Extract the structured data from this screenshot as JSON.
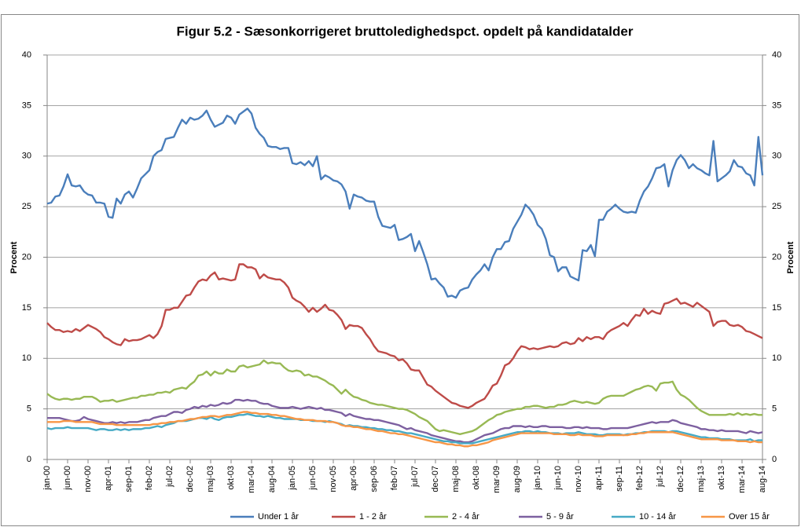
{
  "chart_data": {
    "type": "line",
    "title": "Figur 5.2 - Sæsonkorrigeret bruttoledighedspct. opdelt på kandidatalder",
    "y_label": "Procent",
    "y2_label": "Procent",
    "ylim": [
      0,
      40
    ],
    "yticks": [
      0,
      5,
      10,
      15,
      20,
      25,
      30,
      35,
      40
    ],
    "y2lim": [
      0,
      40
    ],
    "y2ticks": [
      0,
      5,
      10,
      15,
      20,
      25,
      30,
      35,
      40
    ],
    "grid": true,
    "legend": "bottom",
    "categories": [
      "jan-00",
      null,
      null,
      null,
      null,
      "jun-00",
      null,
      null,
      null,
      null,
      "nov-00",
      null,
      null,
      null,
      null,
      "apr-01",
      null,
      null,
      null,
      null,
      "sep-01",
      null,
      null,
      null,
      null,
      "feb-02",
      null,
      null,
      null,
      null,
      "jul-02",
      null,
      null,
      null,
      null,
      "dec-02",
      null,
      null,
      null,
      null,
      "maj-03",
      null,
      null,
      null,
      null,
      "okt-03",
      null,
      null,
      null,
      null,
      "mar-04",
      null,
      null,
      null,
      null,
      "aug-04",
      null,
      null,
      null,
      null,
      "jan-05",
      null,
      null,
      null,
      null,
      "jun-05",
      null,
      null,
      null,
      null,
      "nov-05",
      null,
      null,
      null,
      null,
      "apr-06",
      null,
      null,
      null,
      null,
      "sep-06",
      null,
      null,
      null,
      null,
      "feb-07",
      null,
      null,
      null,
      null,
      "jul-07",
      null,
      null,
      null,
      null,
      "dec-07",
      null,
      null,
      null,
      null,
      "maj-08",
      null,
      null,
      null,
      null,
      "okt-08",
      null,
      null,
      null,
      null,
      "mar-09",
      null,
      null,
      null,
      null,
      "aug-09",
      null,
      null,
      null,
      null,
      "jan-10",
      null,
      null,
      null,
      null,
      "jun-10",
      null,
      null,
      null,
      null,
      "nov-10",
      null,
      null,
      null,
      null,
      "apr-11",
      null,
      null,
      null,
      null,
      "sep-11",
      null,
      null,
      null,
      null,
      "feb-12",
      null,
      null,
      null,
      null,
      "jul-12",
      null,
      null,
      null,
      null,
      "dec-12",
      null,
      null,
      null,
      null,
      "maj-13",
      null,
      null,
      null,
      null,
      "okt-13",
      null,
      null,
      null,
      null,
      "mar-14",
      null,
      null,
      null,
      null,
      "aug-14"
    ],
    "series": [
      {
        "name": "Under 1 år",
        "color": "#4a7ebb",
        "values": [
          25.3,
          25.4,
          26.0,
          26.1,
          27.0,
          28.2,
          27.1,
          27.0,
          27.1,
          26.5,
          26.2,
          26.1,
          25.4,
          25.4,
          25.3,
          24.0,
          23.9,
          25.8,
          25.3,
          26.2,
          26.5,
          25.9,
          26.8,
          27.8,
          28.2,
          28.6,
          30.0,
          30.4,
          30.6,
          31.7,
          31.8,
          31.9,
          32.8,
          33.6,
          33.2,
          33.8,
          33.6,
          33.7,
          34.0,
          34.5,
          33.6,
          32.9,
          33.1,
          33.3,
          34.0,
          33.8,
          33.2,
          34.1,
          34.4,
          34.7,
          34.2,
          32.8,
          32.2,
          31.8,
          31.0,
          30.9,
          30.9,
          30.7,
          30.8,
          30.8,
          29.3,
          29.2,
          29.4,
          29.1,
          29.5,
          29.0,
          30.0,
          27.7,
          28.1,
          27.9,
          27.6,
          27.5,
          27.2,
          26.5,
          24.8,
          26.2,
          26.0,
          25.9,
          25.6,
          25.5,
          25.5,
          24.0,
          23.1,
          23.0,
          22.9,
          23.2,
          21.7,
          21.8,
          22.0,
          22.3,
          20.6,
          21.6,
          20.5,
          19.3,
          17.8,
          17.9,
          17.4,
          17.0,
          16.1,
          16.2,
          16.0,
          16.7,
          16.9,
          17.0,
          17.8,
          18.3,
          18.7,
          19.3,
          18.7,
          20.0,
          20.8,
          20.8,
          21.5,
          21.6,
          22.8,
          23.5,
          24.2,
          25.2,
          24.8,
          24.2,
          23.2,
          22.8,
          21.8,
          20.2,
          20.0,
          18.6,
          19.0,
          19.0,
          18.1,
          17.9,
          17.7,
          20.7,
          20.6,
          21.2,
          20.1,
          23.7,
          23.7,
          24.5,
          24.8,
          25.2,
          24.8,
          24.5,
          24.4,
          24.5,
          24.4,
          25.6,
          26.5,
          27.0,
          27.8,
          28.8,
          28.9,
          29.2,
          27.0,
          28.6,
          29.6,
          30.1,
          29.6,
          28.8,
          29.2,
          28.8,
          28.6,
          28.3,
          28.1,
          31.5,
          27.5,
          27.8,
          28.1,
          28.5,
          29.6,
          29.0,
          28.9,
          28.3,
          28.1,
          27.1,
          31.9,
          28.1
        ]
      },
      {
        "name": "1 - 2 år",
        "color": "#be4b48",
        "values": [
          13.5,
          13.1,
          12.8,
          12.8,
          12.6,
          12.7,
          12.6,
          12.9,
          12.7,
          13.0,
          13.3,
          13.1,
          12.9,
          12.6,
          12.1,
          11.9,
          11.6,
          11.4,
          11.3,
          11.9,
          11.7,
          11.8,
          11.8,
          11.9,
          12.1,
          12.3,
          12.0,
          12.4,
          13.2,
          14.8,
          14.8,
          15.0,
          15.0,
          15.6,
          16.2,
          16.3,
          17.0,
          17.6,
          17.8,
          17.7,
          18.2,
          18.5,
          17.8,
          17.9,
          17.8,
          17.7,
          17.8,
          19.3,
          19.3,
          19.0,
          19.0,
          18.8,
          17.9,
          18.3,
          18.0,
          17.9,
          17.8,
          17.8,
          17.5,
          17.0,
          16.0,
          15.7,
          15.5,
          15.1,
          14.6,
          15.0,
          14.6,
          14.9,
          15.3,
          14.8,
          14.7,
          14.3,
          13.8,
          12.9,
          13.3,
          13.2,
          13.2,
          13.0,
          12.4,
          11.9,
          11.2,
          10.7,
          10.6,
          10.5,
          10.3,
          10.2,
          9.8,
          9.9,
          9.5,
          8.9,
          8.8,
          8.8,
          8.1,
          7.4,
          7.2,
          6.8,
          6.5,
          6.2,
          5.9,
          5.6,
          5.5,
          5.3,
          5.2,
          5.1,
          5.3,
          5.6,
          5.8,
          6.0,
          6.6,
          7.3,
          7.5,
          8.3,
          9.3,
          9.5,
          10.0,
          10.7,
          11.2,
          11.1,
          10.9,
          11.0,
          10.9,
          11.0,
          11.1,
          11.2,
          11.1,
          11.2,
          11.5,
          11.6,
          11.4,
          11.5,
          12.0,
          11.7,
          12.1,
          11.9,
          12.1,
          12.1,
          11.9,
          12.5,
          12.8,
          13.0,
          13.2,
          13.5,
          13.2,
          13.8,
          14.3,
          14.2,
          14.9,
          14.4,
          14.7,
          14.5,
          14.4,
          15.4,
          15.5,
          15.7,
          15.9,
          15.4,
          15.5,
          15.3,
          15.1,
          15.5,
          15.2,
          14.9,
          14.6,
          13.2,
          13.6,
          13.7,
          13.7,
          13.3,
          13.2,
          13.3,
          13.1,
          12.7,
          12.6,
          12.4,
          12.2,
          12.0
        ]
      },
      {
        "name": "2 - 4 år",
        "color": "#98b954",
        "values": [
          6.5,
          6.2,
          6.0,
          5.9,
          6.0,
          6.0,
          5.9,
          6.0,
          6.0,
          6.2,
          6.2,
          6.2,
          6.0,
          5.7,
          5.8,
          5.8,
          5.9,
          5.7,
          5.8,
          5.9,
          6.0,
          6.1,
          6.1,
          6.3,
          6.3,
          6.4,
          6.4,
          6.6,
          6.6,
          6.7,
          6.6,
          6.9,
          7.0,
          7.1,
          7.0,
          7.4,
          7.7,
          8.3,
          8.4,
          8.7,
          8.3,
          8.7,
          8.5,
          8.5,
          8.9,
          8.7,
          8.7,
          9.2,
          9.3,
          9.1,
          9.2,
          9.3,
          9.4,
          9.8,
          9.5,
          9.6,
          9.5,
          9.5,
          9.1,
          8.8,
          8.7,
          8.8,
          8.7,
          8.3,
          8.4,
          8.2,
          8.2,
          8.0,
          7.8,
          7.5,
          7.3,
          6.9,
          6.5,
          6.9,
          6.5,
          6.2,
          6.1,
          5.9,
          5.8,
          5.6,
          5.5,
          5.4,
          5.4,
          5.3,
          5.2,
          5.1,
          5.0,
          5.0,
          4.9,
          4.7,
          4.5,
          4.2,
          4.0,
          3.8,
          3.4,
          3.0,
          2.8,
          2.9,
          2.8,
          2.7,
          2.6,
          2.5,
          2.6,
          2.7,
          2.8,
          3.0,
          3.3,
          3.6,
          3.9,
          4.1,
          4.4,
          4.5,
          4.7,
          4.8,
          4.9,
          5.0,
          5.0,
          5.2,
          5.2,
          5.3,
          5.3,
          5.2,
          5.1,
          5.2,
          5.2,
          5.4,
          5.4,
          5.5,
          5.7,
          5.8,
          5.7,
          5.6,
          5.7,
          5.6,
          5.5,
          5.6,
          6.0,
          6.2,
          6.3,
          6.3,
          6.3,
          6.3,
          6.5,
          6.7,
          6.9,
          7.0,
          7.2,
          7.3,
          7.2,
          6.8,
          7.5,
          7.6,
          7.6,
          7.7,
          6.9,
          6.4,
          6.2,
          5.9,
          5.5,
          5.1,
          4.8,
          4.6,
          4.4,
          4.4,
          4.4,
          4.4,
          4.4,
          4.5,
          4.4,
          4.6,
          4.4,
          4.5,
          4.4,
          4.5,
          4.4,
          4.4
        ]
      },
      {
        "name": "5 - 9 år",
        "color": "#7d60a0",
        "values": [
          4.1,
          4.1,
          4.1,
          4.1,
          4.0,
          3.9,
          3.8,
          3.8,
          3.9,
          4.2,
          4.0,
          3.9,
          3.8,
          3.7,
          3.6,
          3.6,
          3.7,
          3.6,
          3.7,
          3.6,
          3.7,
          3.7,
          3.7,
          3.8,
          3.9,
          3.9,
          4.1,
          4.2,
          4.3,
          4.3,
          4.5,
          4.7,
          4.7,
          4.6,
          4.9,
          5.0,
          5.2,
          5.1,
          5.3,
          5.2,
          5.4,
          5.3,
          5.4,
          5.6,
          5.5,
          5.6,
          5.9,
          5.9,
          5.8,
          5.9,
          5.8,
          5.8,
          5.6,
          5.5,
          5.5,
          5.3,
          5.2,
          5.1,
          5.1,
          5.1,
          5.2,
          5.1,
          5.0,
          5.1,
          5.2,
          5.1,
          5.0,
          5.1,
          4.9,
          4.9,
          4.8,
          4.7,
          4.6,
          4.3,
          4.5,
          4.3,
          4.2,
          4.1,
          4.0,
          4.0,
          3.9,
          3.9,
          3.8,
          3.7,
          3.6,
          3.5,
          3.4,
          3.2,
          3.0,
          3.1,
          2.9,
          2.8,
          2.7,
          2.6,
          2.4,
          2.3,
          2.2,
          2.1,
          2.0,
          1.9,
          1.8,
          1.8,
          1.7,
          1.7,
          1.8,
          2.0,
          2.2,
          2.4,
          2.5,
          2.6,
          2.8,
          3.0,
          3.1,
          3.1,
          3.3,
          3.3,
          3.3,
          3.2,
          3.3,
          3.2,
          3.2,
          3.3,
          3.3,
          3.2,
          3.2,
          3.2,
          3.2,
          3.1,
          3.1,
          3.2,
          3.2,
          3.1,
          3.2,
          3.1,
          3.1,
          3.1,
          3.0,
          3.0,
          3.1,
          3.1,
          3.1,
          3.1,
          3.1,
          3.2,
          3.3,
          3.4,
          3.5,
          3.6,
          3.7,
          3.6,
          3.7,
          3.7,
          3.7,
          3.9,
          3.8,
          3.6,
          3.5,
          3.4,
          3.3,
          3.2,
          3.0,
          3.0,
          2.9,
          2.9,
          2.8,
          2.9,
          2.8,
          2.8,
          2.8,
          2.8,
          2.7,
          2.6,
          2.8,
          2.7,
          2.6,
          2.7
        ]
      },
      {
        "name": "10 - 14 år",
        "color": "#46aac5",
        "values": [
          3.1,
          3.0,
          3.1,
          3.1,
          3.1,
          3.2,
          3.1,
          3.1,
          3.1,
          3.1,
          3.1,
          3.0,
          2.9,
          3.0,
          3.0,
          2.9,
          2.9,
          3.0,
          2.9,
          3.0,
          2.9,
          3.0,
          3.0,
          3.0,
          3.1,
          3.1,
          3.2,
          3.3,
          3.2,
          3.4,
          3.5,
          3.6,
          3.8,
          3.8,
          3.8,
          3.9,
          4.0,
          4.1,
          4.1,
          4.0,
          4.2,
          4.0,
          3.9,
          4.1,
          4.2,
          4.2,
          4.3,
          4.4,
          4.4,
          4.5,
          4.4,
          4.3,
          4.3,
          4.2,
          4.3,
          4.2,
          4.1,
          4.1,
          4.0,
          4.0,
          4.0,
          4.0,
          3.9,
          3.9,
          3.9,
          3.8,
          3.8,
          3.8,
          3.7,
          3.8,
          3.7,
          3.6,
          3.5,
          3.3,
          3.4,
          3.3,
          3.3,
          3.2,
          3.2,
          3.1,
          3.1,
          3.0,
          3.0,
          2.9,
          2.9,
          2.8,
          2.8,
          2.7,
          2.6,
          2.6,
          2.5,
          2.4,
          2.3,
          2.2,
          2.1,
          2.0,
          1.9,
          1.8,
          1.8,
          1.7,
          1.7,
          1.6,
          1.6,
          1.6,
          1.6,
          1.7,
          1.8,
          1.9,
          2.0,
          2.1,
          2.2,
          2.3,
          2.4,
          2.5,
          2.6,
          2.7,
          2.7,
          2.8,
          2.8,
          2.7,
          2.8,
          2.7,
          2.7,
          2.6,
          2.6,
          2.6,
          2.5,
          2.6,
          2.6,
          2.6,
          2.7,
          2.6,
          2.5,
          2.5,
          2.5,
          2.4,
          2.4,
          2.5,
          2.5,
          2.5,
          2.5,
          2.4,
          2.5,
          2.5,
          2.6,
          2.6,
          2.7,
          2.7,
          2.8,
          2.8,
          2.8,
          2.8,
          2.7,
          2.8,
          2.8,
          2.7,
          2.6,
          2.5,
          2.4,
          2.3,
          2.2,
          2.2,
          2.1,
          2.1,
          2.1,
          2.0,
          2.0,
          2.0,
          1.9,
          1.9,
          1.9,
          1.9,
          2.0,
          1.8,
          1.9,
          1.9
        ]
      },
      {
        "name": "Over 15 år",
        "color": "#f79646",
        "values": [
          3.7,
          3.7,
          3.7,
          3.7,
          3.8,
          3.8,
          3.8,
          3.7,
          3.7,
          3.7,
          3.7,
          3.7,
          3.6,
          3.5,
          3.5,
          3.5,
          3.5,
          3.4,
          3.4,
          3.4,
          3.4,
          3.4,
          3.4,
          3.4,
          3.4,
          3.4,
          3.5,
          3.5,
          3.6,
          3.6,
          3.7,
          3.7,
          3.8,
          3.8,
          3.9,
          4.0,
          4.0,
          4.1,
          4.2,
          4.2,
          4.3,
          4.3,
          4.2,
          4.3,
          4.4,
          4.4,
          4.5,
          4.6,
          4.7,
          4.7,
          4.6,
          4.6,
          4.5,
          4.5,
          4.5,
          4.4,
          4.4,
          4.3,
          4.3,
          4.2,
          4.1,
          4.0,
          4.0,
          3.9,
          3.9,
          3.9,
          3.8,
          3.8,
          3.8,
          3.7,
          3.7,
          3.6,
          3.4,
          3.3,
          3.3,
          3.2,
          3.2,
          3.1,
          3.0,
          3.0,
          2.9,
          2.8,
          2.8,
          2.7,
          2.6,
          2.6,
          2.5,
          2.5,
          2.4,
          2.3,
          2.2,
          2.1,
          2.0,
          1.9,
          1.8,
          1.7,
          1.7,
          1.6,
          1.5,
          1.5,
          1.4,
          1.4,
          1.3,
          1.3,
          1.4,
          1.4,
          1.5,
          1.6,
          1.7,
          1.9,
          2.0,
          2.1,
          2.2,
          2.3,
          2.4,
          2.5,
          2.6,
          2.6,
          2.6,
          2.6,
          2.6,
          2.6,
          2.6,
          2.6,
          2.5,
          2.5,
          2.5,
          2.5,
          2.4,
          2.4,
          2.5,
          2.4,
          2.4,
          2.4,
          2.3,
          2.3,
          2.3,
          2.4,
          2.4,
          2.4,
          2.4,
          2.4,
          2.4,
          2.5,
          2.5,
          2.6,
          2.6,
          2.7,
          2.7,
          2.7,
          2.7,
          2.7,
          2.7,
          2.7,
          2.6,
          2.5,
          2.4,
          2.3,
          2.2,
          2.1,
          2.0,
          2.0,
          2.0,
          2.0,
          2.0,
          1.9,
          1.9,
          1.9,
          1.9,
          1.8,
          1.8,
          1.8,
          1.7,
          1.8,
          1.7,
          1.7
        ]
      }
    ]
  }
}
